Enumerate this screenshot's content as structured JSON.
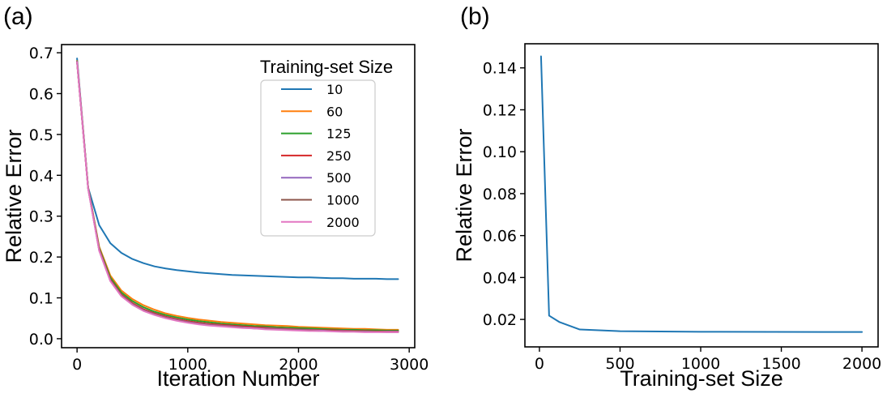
{
  "chart_data": [
    {
      "panel_label": "(a)",
      "type": "line",
      "title": "",
      "xlabel": "Iteration Number",
      "ylabel": "Relative Error",
      "xlim": [
        -140,
        3050
      ],
      "ylim": [
        -0.022,
        0.72
      ],
      "xticks": [
        0,
        1000,
        2000,
        3000
      ],
      "xtick_labels": [
        "0",
        "1000",
        "2000",
        "3000"
      ],
      "yticks": [
        0.0,
        0.1,
        0.2,
        0.3,
        0.4,
        0.5,
        0.6,
        0.7
      ],
      "ytick_labels": [
        "0.0",
        "0.1",
        "0.2",
        "0.3",
        "0.4",
        "0.5",
        "0.6",
        "0.7"
      ],
      "grid": false,
      "legend": {
        "title": "Training-set Size",
        "placement": "top-right"
      },
      "x": [
        0,
        100,
        200,
        300,
        400,
        500,
        600,
        700,
        800,
        900,
        1000,
        1100,
        1200,
        1300,
        1400,
        1500,
        1600,
        1700,
        1800,
        1900,
        2000,
        2100,
        2200,
        2300,
        2400,
        2500,
        2600,
        2700,
        2800,
        2900
      ],
      "series": [
        {
          "name": "10",
          "color": "#1f77b4",
          "values": [
            0.686,
            0.37,
            0.278,
            0.234,
            0.21,
            0.195,
            0.185,
            0.177,
            0.172,
            0.168,
            0.165,
            0.162,
            0.16,
            0.158,
            0.156,
            0.155,
            0.154,
            0.153,
            0.152,
            0.151,
            0.15,
            0.15,
            0.149,
            0.148,
            0.148,
            0.147,
            0.147,
            0.147,
            0.146,
            0.146
          ]
        },
        {
          "name": "60",
          "color": "#ff7f0e",
          "values": [
            0.68,
            0.37,
            0.225,
            0.155,
            0.118,
            0.097,
            0.082,
            0.071,
            0.062,
            0.056,
            0.051,
            0.047,
            0.044,
            0.041,
            0.039,
            0.037,
            0.035,
            0.033,
            0.032,
            0.031,
            0.029,
            0.028,
            0.027,
            0.026,
            0.025,
            0.024,
            0.024,
            0.023,
            0.022,
            0.022
          ]
        },
        {
          "name": "125",
          "color": "#2ca02c",
          "values": [
            0.679,
            0.37,
            0.222,
            0.15,
            0.113,
            0.092,
            0.077,
            0.066,
            0.058,
            0.052,
            0.047,
            0.043,
            0.04,
            0.037,
            0.035,
            0.033,
            0.031,
            0.03,
            0.028,
            0.027,
            0.026,
            0.025,
            0.024,
            0.023,
            0.022,
            0.022,
            0.021,
            0.021,
            0.02,
            0.02
          ]
        },
        {
          "name": "250",
          "color": "#d62728",
          "values": [
            0.678,
            0.369,
            0.219,
            0.145,
            0.108,
            0.087,
            0.072,
            0.062,
            0.054,
            0.048,
            0.043,
            0.039,
            0.036,
            0.034,
            0.032,
            0.03,
            0.028,
            0.027,
            0.025,
            0.024,
            0.023,
            0.022,
            0.021,
            0.021,
            0.02,
            0.019,
            0.019,
            0.018,
            0.018,
            0.018
          ]
        },
        {
          "name": "500",
          "color": "#9467bd",
          "values": [
            0.678,
            0.368,
            0.217,
            0.143,
            0.106,
            0.085,
            0.07,
            0.06,
            0.052,
            0.046,
            0.041,
            0.037,
            0.034,
            0.032,
            0.03,
            0.028,
            0.026,
            0.025,
            0.024,
            0.023,
            0.022,
            0.021,
            0.02,
            0.019,
            0.019,
            0.018,
            0.018,
            0.017,
            0.017,
            0.017
          ]
        },
        {
          "name": "1000",
          "color": "#8c564b",
          "values": [
            0.677,
            0.368,
            0.216,
            0.142,
            0.105,
            0.084,
            0.069,
            0.059,
            0.051,
            0.045,
            0.04,
            0.036,
            0.033,
            0.031,
            0.029,
            0.027,
            0.025,
            0.024,
            0.023,
            0.022,
            0.021,
            0.02,
            0.019,
            0.019,
            0.018,
            0.018,
            0.017,
            0.017,
            0.016,
            0.016
          ]
        },
        {
          "name": "2000",
          "color": "#e377c2",
          "values": [
            0.677,
            0.367,
            0.215,
            0.141,
            0.104,
            0.083,
            0.068,
            0.058,
            0.05,
            0.044,
            0.039,
            0.035,
            0.032,
            0.03,
            0.028,
            0.026,
            0.025,
            0.023,
            0.022,
            0.021,
            0.02,
            0.019,
            0.019,
            0.018,
            0.017,
            0.017,
            0.016,
            0.016,
            0.016,
            0.016
          ]
        }
      ]
    },
    {
      "panel_label": "(b)",
      "type": "line",
      "title": "",
      "xlabel": "Training-set Size",
      "ylabel": "Relative Error",
      "xlim": [
        -90,
        2100
      ],
      "ylim": [
        0.0069,
        0.1515
      ],
      "xticks": [
        0,
        500,
        1000,
        1500,
        2000
      ],
      "xtick_labels": [
        "0",
        "500",
        "1000",
        "1500",
        "2000"
      ],
      "yticks": [
        0.02,
        0.04,
        0.06,
        0.08,
        0.1,
        0.12,
        0.14
      ],
      "ytick_labels": [
        "0.02",
        "0.04",
        "0.06",
        "0.08",
        "0.10",
        "0.12",
        "0.14"
      ],
      "grid": false,
      "x": [
        10,
        60,
        125,
        250,
        500,
        1000,
        2000
      ],
      "series": [
        {
          "name": "Relative Error",
          "color": "#1f77b4",
          "values": [
            0.1455,
            0.0218,
            0.0187,
            0.0152,
            0.0144,
            0.0141,
            0.014
          ]
        }
      ]
    }
  ]
}
